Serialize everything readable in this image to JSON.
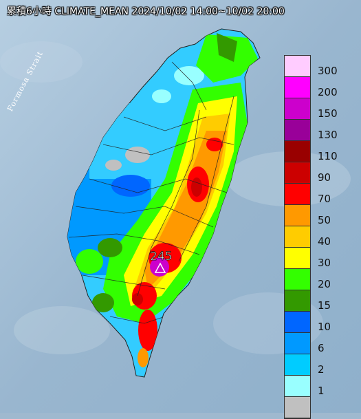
{
  "title": "累積6小時 CLIMATE_MEAN 2024/10/02 14:00~10/02 20:00",
  "strait_label": "Formosa Strait",
  "max_value": "245",
  "legend": [
    {
      "label": "300",
      "color": "#ffccff"
    },
    {
      "label": "200",
      "color": "#ff00ff"
    },
    {
      "label": "150",
      "color": "#cc00cc"
    },
    {
      "label": "130",
      "color": "#990099"
    },
    {
      "label": "110",
      "color": "#990000"
    },
    {
      "label": "90",
      "color": "#cc0000"
    },
    {
      "label": "70",
      "color": "#ff0000"
    },
    {
      "label": "50",
      "color": "#ff9900"
    },
    {
      "label": "40",
      "color": "#ffcc00"
    },
    {
      "label": "30",
      "color": "#ffff00"
    },
    {
      "label": "20",
      "color": "#33ff00"
    },
    {
      "label": "15",
      "color": "#339900"
    },
    {
      "label": "10",
      "color": "#0066ff"
    },
    {
      "label": "6",
      "color": "#0099ff"
    },
    {
      "label": "2",
      "color": "#00ccff"
    },
    {
      "label": "1",
      "color": "#99ffff"
    },
    {
      "label": "",
      "color": "#c0c0c0"
    }
  ]
}
